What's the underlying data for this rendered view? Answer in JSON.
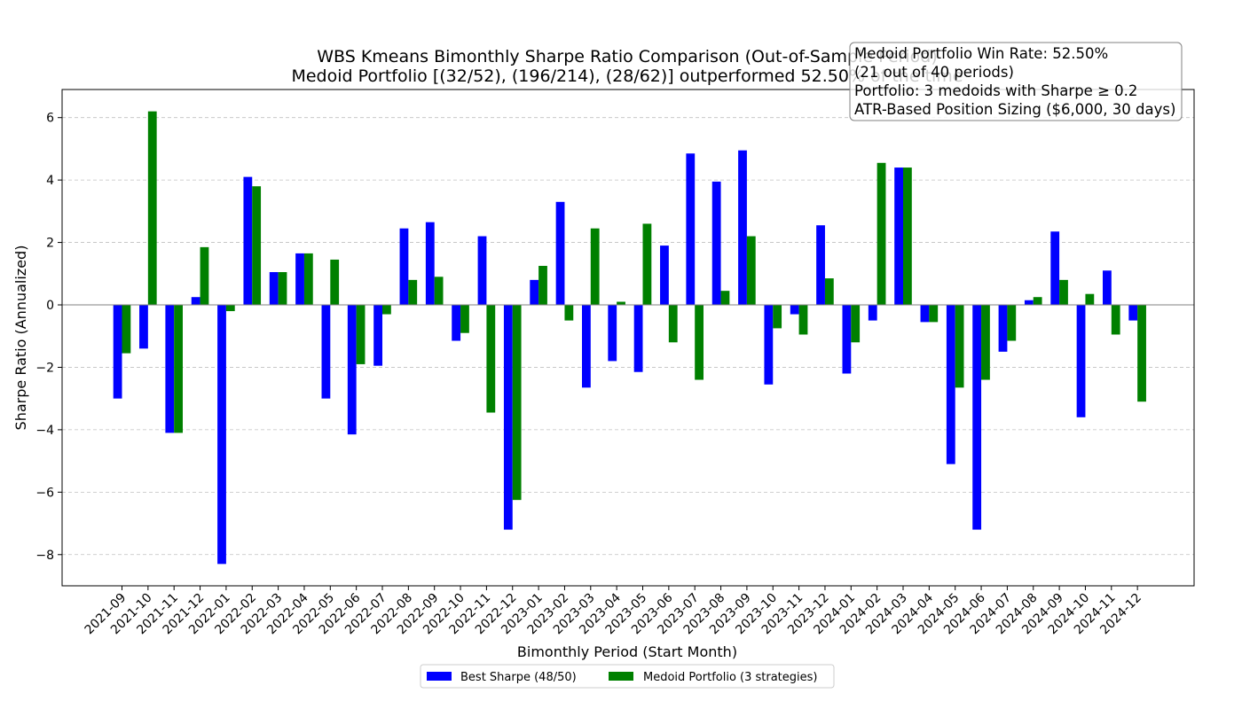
{
  "chart_data": {
    "type": "bar",
    "title": "WBS Kmeans Bimonthly Sharpe Ratio Comparison (Out-of-Sample Period)",
    "subtitle": "Medoid Portfolio [(32/52), (196/214), (28/62)] outperformed 52.50% of the time",
    "xlabel": "Bimonthly Period (Start Month)",
    "ylabel": "Sharpe Ratio (Annualized)",
    "ylim": [
      -9.0,
      6.9
    ],
    "yticks": [
      -8,
      -6,
      -4,
      -2,
      0,
      2,
      4,
      6
    ],
    "grid": "y-dashed",
    "legend_position": "bottom-center",
    "categories": [
      "2021-09",
      "2021-10",
      "2021-11",
      "2021-12",
      "2022-01",
      "2022-02",
      "2022-03",
      "2022-04",
      "2022-05",
      "2022-06",
      "2022-07",
      "2022-08",
      "2022-09",
      "2022-10",
      "2022-11",
      "2022-12",
      "2023-01",
      "2023-02",
      "2023-03",
      "2023-04",
      "2023-05",
      "2023-06",
      "2023-07",
      "2023-08",
      "2023-09",
      "2023-10",
      "2023-11",
      "2023-12",
      "2024-01",
      "2024-02",
      "2024-03",
      "2024-04",
      "2024-05",
      "2024-06",
      "2024-07",
      "2024-08",
      "2024-09",
      "2024-10",
      "2024-11",
      "2024-12"
    ],
    "series": [
      {
        "name": "Best Sharpe (48/50)",
        "color": "#0000ff",
        "values": [
          -3.0,
          -1.4,
          -4.1,
          0.25,
          -8.3,
          4.1,
          1.05,
          1.65,
          -3.0,
          -4.15,
          -1.95,
          2.45,
          2.65,
          -1.15,
          2.2,
          -7.2,
          0.8,
          3.3,
          -2.65,
          -1.8,
          -2.15,
          1.9,
          4.85,
          3.95,
          4.95,
          -2.55,
          -0.3,
          2.55,
          -2.2,
          -0.5,
          4.4,
          -0.55,
          -5.1,
          -7.2,
          -1.5,
          0.15,
          2.35,
          -3.6,
          1.1,
          -0.5
        ]
      },
      {
        "name": "Medoid Portfolio (3 strategies)",
        "color": "#008000",
        "values": [
          -1.55,
          6.2,
          -4.1,
          1.85,
          -0.2,
          3.8,
          1.05,
          1.65,
          1.45,
          -1.9,
          -0.3,
          0.8,
          0.9,
          -0.9,
          -3.45,
          -6.25,
          1.25,
          -0.5,
          2.45,
          0.1,
          2.6,
          -1.2,
          -2.4,
          0.45,
          2.2,
          -0.75,
          -0.95,
          0.85,
          -1.2,
          4.55,
          4.4,
          -0.55,
          -2.65,
          -2.4,
          -1.15,
          0.25,
          0.8,
          0.35,
          -0.95,
          -3.1
        ]
      }
    ],
    "annotation_lines": [
      "Medoid Portfolio Win Rate: 52.50%",
      "(21 out of 40 periods)",
      "Portfolio: 3 medoids with Sharpe ≥ 0.2",
      "ATR-Based Position Sizing ($6,000, 30 days)"
    ]
  }
}
